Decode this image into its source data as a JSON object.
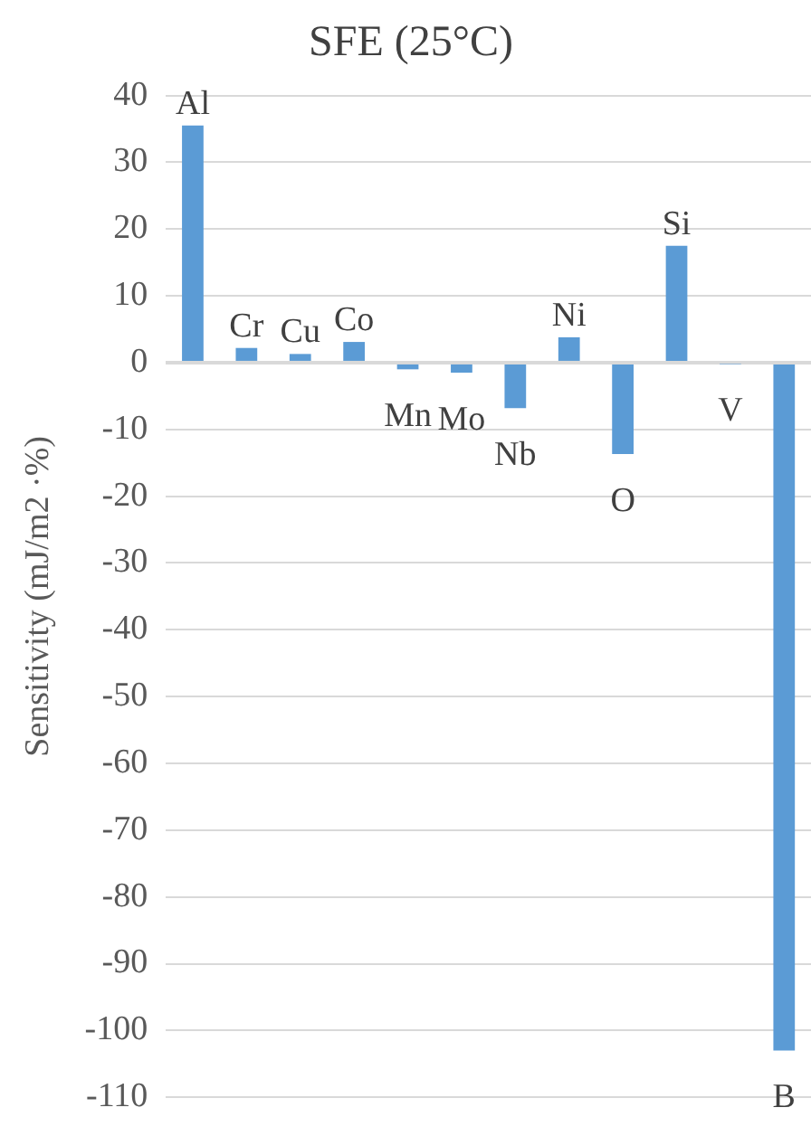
{
  "chart_data": {
    "type": "bar",
    "title": "SFE (25°C)",
    "ylabel": "Sensitivity (mJ/m2 ·%)",
    "categories": [
      "Al",
      "Cr",
      "Cu",
      "Co",
      "Mn",
      "Mo",
      "Nb",
      "Ni",
      "O",
      "Si",
      "V",
      "B"
    ],
    "values": [
      35.5,
      2.2,
      1.3,
      3.1,
      -1,
      -1.5,
      -6.8,
      3.8,
      -13.7,
      17.5,
      -0.2,
      -103
    ],
    "color": "#5b9bd5",
    "ylim": [
      -110,
      40
    ],
    "yticks": [
      -110,
      -100,
      -90,
      -80,
      -70,
      -60,
      -50,
      -40,
      -30,
      -20,
      -10,
      0,
      10,
      20,
      30,
      40
    ],
    "grid": "y",
    "legend": false
  }
}
